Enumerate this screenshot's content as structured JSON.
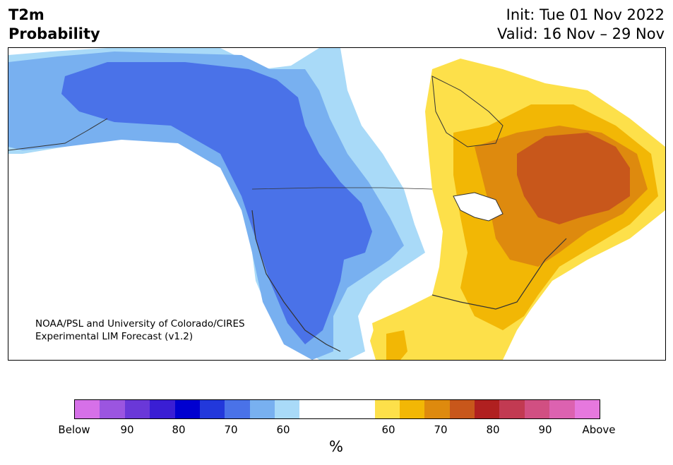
{
  "title": {
    "line1": "T2m",
    "line2": "Probability"
  },
  "init": {
    "line1": "Init: Tue 01 Nov 2022",
    "line2": "Valid: 16 Nov – 29 Nov"
  },
  "credit": {
    "line1": "NOAA/PSL and University of Colorado/CIRES",
    "line2": "Experimental LIM Forecast (v1.2)"
  },
  "colors": {
    "below": [
      "#d670e8",
      "#9b55e0",
      "#6a38d8",
      "#3a1ed4",
      "#0000d0",
      "#2238db",
      "#4a72e8",
      "#78b0f0",
      "#a9daf8"
    ],
    "neutral": "#ffffff",
    "above": [
      "#fde04a",
      "#f2b705",
      "#de8a0e",
      "#c8571b",
      "#b02020",
      "#c23a52",
      "#d14f82",
      "#dc62b0",
      "#e678de"
    ]
  },
  "colorbar": {
    "labels": [
      "Below",
      "90",
      "80",
      "70",
      "60",
      "60",
      "70",
      "80",
      "90",
      "Above"
    ],
    "unit": "%"
  }
}
